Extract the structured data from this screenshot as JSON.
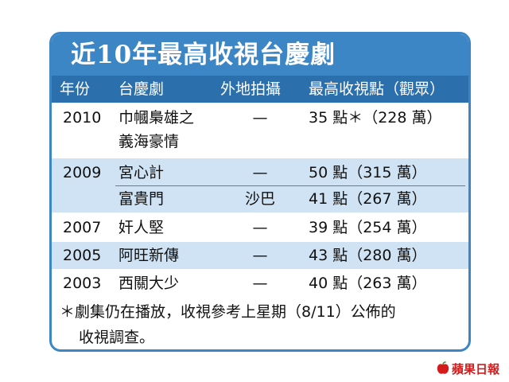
{
  "title": "近10年最高收視台慶劇",
  "headers": [
    "年份",
    "台慶劇",
    "外地拍攝",
    "最高收視點（觀眾）"
  ],
  "rows": [
    {
      "year": "2010",
      "drama": "巾幗梟雄之",
      "drama2": "義海豪情",
      "location": "—",
      "rating": "35 點＊（228 萬）"
    },
    {
      "year": "2009",
      "drama": "宮心計",
      "location": "—",
      "rating": "50 點（315 萬）"
    },
    {
      "year": "",
      "drama": "富貴門",
      "location": "沙巴",
      "rating": "41 點（267 萬）"
    },
    {
      "year": "2007",
      "drama": "奸人堅",
      "location": "—",
      "rating": "39 點（254 萬）"
    },
    {
      "year": "2005",
      "drama": "阿旺新傳",
      "location": "—",
      "rating": "43 點（280 萬）"
    },
    {
      "year": "2003",
      "drama": "西關大少",
      "location": "—",
      "rating": "40 點（263 萬）"
    }
  ],
  "footnote_line1": "＊劇集仍在播放，收視參考上星期（8/11）公佈的",
  "footnote_line2": "收視調查。",
  "logo_text": "蘋果日報",
  "logo_icon": "apple-icon",
  "colors": {
    "title_bg": "#3d86c6",
    "header_bg": "#2c6fad",
    "alt_row": "#cfe3f4",
    "logo": "#d41c1c"
  }
}
